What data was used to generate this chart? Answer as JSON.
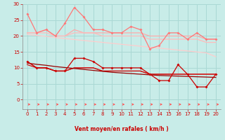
{
  "xlabel": "Vent moyen/en rafales ( km/h )",
  "background_color": "#c8ece8",
  "grid_color": "#aad8d4",
  "x": [
    0,
    1,
    2,
    3,
    4,
    5,
    6,
    7,
    8,
    9,
    10,
    11,
    12,
    13,
    14,
    15,
    16,
    17,
    18,
    19,
    20
  ],
  "ylim": [
    -3,
    30
  ],
  "xlim": [
    -0.5,
    20.5
  ],
  "yticks": [
    0,
    5,
    10,
    15,
    20,
    25,
    30
  ],
  "xticks": [
    0,
    1,
    2,
    3,
    4,
    5,
    6,
    7,
    8,
    9,
    10,
    11,
    12,
    13,
    14,
    15,
    16,
    17,
    18,
    19,
    20
  ],
  "line_rafales_spiky": [
    27,
    21,
    22,
    20,
    24,
    29,
    26,
    22,
    22,
    21,
    21,
    23,
    22,
    16,
    17,
    21,
    21,
    19,
    21,
    19,
    19
  ],
  "line_rafales_flat1": [
    21,
    21,
    22,
    20,
    20,
    22,
    21,
    21,
    21,
    21,
    21,
    21,
    21,
    20,
    20,
    20,
    20,
    20,
    20,
    19,
    19
  ],
  "line_rafales_flat2": [
    21,
    21,
    21,
    20,
    20,
    21,
    21,
    21,
    20,
    20,
    20,
    20,
    20,
    19,
    19,
    19,
    19,
    19,
    19,
    18,
    18
  ],
  "line_rafales_trend": [
    20.5,
    20.2,
    19.9,
    19.5,
    19.2,
    18.9,
    18.6,
    18.3,
    18.0,
    17.7,
    17.4,
    17.1,
    16.8,
    16.5,
    16.2,
    15.9,
    15.6,
    15.3,
    15.0,
    14.7,
    13.5
  ],
  "line_vent_spiky": [
    12,
    10,
    10,
    9,
    9,
    13,
    13,
    12,
    10,
    10,
    10,
    10,
    10,
    8,
    6,
    6,
    11,
    8,
    4,
    4,
    8
  ],
  "line_vent_flat1": [
    12,
    10,
    10,
    9,
    9,
    10,
    10,
    10,
    9,
    9,
    9,
    9,
    9,
    8,
    8,
    8,
    8,
    8,
    8,
    8,
    8
  ],
  "line_vent_flat2": [
    11,
    10,
    10,
    9,
    9,
    10,
    10,
    10,
    9,
    9,
    9,
    9,
    9,
    8,
    8,
    8,
    8,
    8,
    8,
    8,
    8
  ],
  "line_vent_trend": [
    11.5,
    11.1,
    10.8,
    10.4,
    10.1,
    9.8,
    9.5,
    9.2,
    8.9,
    8.6,
    8.4,
    8.2,
    8.0,
    7.8,
    7.6,
    7.5,
    7.4,
    7.3,
    7.2,
    7.1,
    7.0
  ],
  "color_rafales_spiky": "#ff7777",
  "color_rafales_flat1": "#ffaaaa",
  "color_rafales_flat2": "#ffbbbb",
  "color_rafales_trend": "#ffcccc",
  "color_vent_spiky": "#cc0000",
  "color_vent_flat1": "#dd3333",
  "color_vent_flat2": "#cc1111",
  "color_vent_trend": "#990000",
  "arrow_color": "#ff5555",
  "tick_color": "#cc0000",
  "label_color": "#cc0000",
  "spine_color": "#888888"
}
